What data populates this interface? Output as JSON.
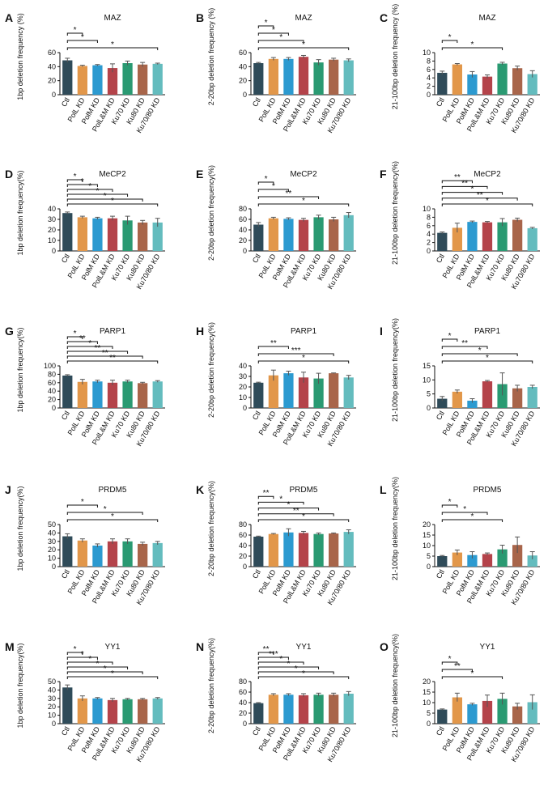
{
  "colors": {
    "Ctl": "#2f4b59",
    "PolL KD": "#e2974a",
    "PolM KD": "#2c9ad0",
    "PolL&M KD": "#b4434a",
    "Ku70 KD": "#2a9a72",
    "Ku80 KD": "#a8654a",
    "Ku70/80 KD": "#64bcbe",
    "error_bar": "#555555",
    "axis": "#111111"
  },
  "chart_data": [
    {
      "panel": "A",
      "type": "bar",
      "title": "MAZ",
      "ylabel": "1bp deletion frequency (%)",
      "categories": [
        "Ctl",
        "PolL KD",
        "PolM KD",
        "PolL&M KD",
        "Ku70 KD",
        "Ku80 KD",
        "Ku70/80 KD"
      ],
      "values": [
        49,
        41,
        42,
        38,
        45,
        43,
        44
      ],
      "errors": [
        3,
        1,
        1,
        6,
        3,
        3,
        1
      ],
      "ylim": [
        0,
        60
      ],
      "yticks": [
        "0",
        "20",
        "40",
        "60"
      ],
      "significance": [
        {
          "to": 1,
          "label": "*"
        },
        {
          "to": 2,
          "label": "*"
        },
        {
          "to": 6,
          "label": "*"
        }
      ]
    },
    {
      "panel": "B",
      "type": "bar",
      "title": "MAZ",
      "ylabel": "2-20bp deletion frequency (%)",
      "categories": [
        "Ctl",
        "PolL KD",
        "PolM KD",
        "PolL&M KD",
        "Ku70 KD",
        "Ku80 KD",
        "Ku70/80 KD"
      ],
      "values": [
        45,
        51,
        51,
        54,
        46,
        50,
        49
      ],
      "errors": [
        1,
        2,
        2,
        2,
        4,
        2,
        2
      ],
      "ylim": [
        0,
        60
      ],
      "yticks": [
        "0",
        "20",
        "40",
        "60"
      ],
      "significance": [
        {
          "to": 1,
          "label": "*"
        },
        {
          "to": 2,
          "label": "*"
        },
        {
          "to": 3,
          "label": "*"
        },
        {
          "to": 6,
          "label": "*"
        }
      ]
    },
    {
      "panel": "C",
      "type": "bar",
      "title": "MAZ",
      "ylabel": "21-100bp deletion frequency (%)",
      "categories": [
        "Ctl",
        "PolL KD",
        "PolM KD",
        "PolL&M KD",
        "Ku70 KD",
        "Ku80 KD",
        "Ku70/80 KD"
      ],
      "values": [
        5.2,
        7.2,
        4.8,
        4.3,
        7.4,
        6.3,
        4.9
      ],
      "errors": [
        0.4,
        0.2,
        0.7,
        0.4,
        0.3,
        0.5,
        0.8
      ],
      "ylim": [
        0,
        10
      ],
      "yticks": [
        "0",
        "2",
        "4",
        "6",
        "8",
        "10"
      ],
      "significance": [
        {
          "to": 1,
          "label": "*"
        },
        {
          "to": 4,
          "label": "*"
        }
      ]
    },
    {
      "panel": "D",
      "type": "bar",
      "title": "MeCP2",
      "ylabel": "1bp deletion frequency(%)",
      "categories": [
        "Ctl",
        "PolL KD",
        "PolM KD",
        "PolL&M KD",
        "Ku70 KD",
        "Ku80 KD",
        "Ku70/80 KD"
      ],
      "values": [
        36,
        32,
        31,
        31,
        29,
        27,
        27
      ],
      "errors": [
        1,
        1,
        1,
        2,
        4,
        2,
        4
      ],
      "ylim": [
        0,
        40
      ],
      "yticks": [
        "0",
        "10",
        "20",
        "30",
        "40"
      ],
      "significance": [
        {
          "to": 1,
          "label": "*"
        },
        {
          "to": 2,
          "label": "*"
        },
        {
          "to": 3,
          "label": "*"
        },
        {
          "to": 4,
          "label": "*"
        },
        {
          "to": 5,
          "label": "*"
        },
        {
          "to": 6,
          "label": "*"
        }
      ]
    },
    {
      "panel": "E",
      "type": "bar",
      "title": "MeCP2",
      "ylabel": "2-20bp deletion frequency(%)",
      "categories": [
        "Ctl",
        "PolL KD",
        "PolM KD",
        "PolL&M KD",
        "Ku70 KD",
        "Ku80 KD",
        "Ku70/80 KD"
      ],
      "values": [
        50,
        62,
        61,
        59,
        64,
        60,
        68
      ],
      "errors": [
        4,
        2,
        2,
        3,
        4,
        4,
        5
      ],
      "ylim": [
        0,
        80
      ],
      "yticks": [
        "0",
        "20",
        "40",
        "60",
        "80"
      ],
      "significance": [
        {
          "to": 1,
          "label": "*"
        },
        {
          "to": 2,
          "label": "*"
        },
        {
          "to": 4,
          "label": "**"
        },
        {
          "to": 6,
          "label": "*"
        }
      ]
    },
    {
      "panel": "F",
      "type": "bar",
      "title": "MeCP2",
      "ylabel": "21-100bp deletion frequency(%)",
      "categories": [
        "Ctl",
        "PolL KD",
        "PolM KD",
        "PolL&M KD",
        "Ku70 KD",
        "Ku80 KD",
        "Ku70/80 KD"
      ],
      "values": [
        4.3,
        5.5,
        6.9,
        6.8,
        6.8,
        7.4,
        5.4
      ],
      "errors": [
        0.2,
        1.1,
        0.2,
        0.2,
        0.9,
        0.4,
        0.2
      ],
      "ylim": [
        0,
        10
      ],
      "yticks": [
        "0",
        "2",
        "4",
        "6",
        "8",
        "10"
      ],
      "significance": [
        {
          "to": 2,
          "label": "**"
        },
        {
          "to": 3,
          "label": "**"
        },
        {
          "to": 4,
          "label": "*"
        },
        {
          "to": 5,
          "label": "**"
        },
        {
          "to": 6,
          "label": "*"
        }
      ]
    },
    {
      "panel": "G",
      "type": "bar",
      "title": "PARP1",
      "ylabel": "1bp deletion frequency(%)",
      "categories": [
        "Ctl",
        "PolL KD",
        "PolM KD",
        "PolL&M KD",
        "Ku70 KD",
        "Ku80 KD",
        "Ku70/80 KD"
      ],
      "values": [
        77,
        62,
        63,
        60,
        63,
        59,
        63
      ],
      "errors": [
        2,
        6,
        3,
        6,
        3,
        2,
        2
      ],
      "ylim": [
        0,
        100
      ],
      "yticks": [
        "0",
        "20",
        "40",
        "60",
        "80",
        "100"
      ],
      "significance": [
        {
          "to": 1,
          "label": "*"
        },
        {
          "to": 2,
          "label": "**"
        },
        {
          "to": 3,
          "label": "*"
        },
        {
          "to": 4,
          "label": "**"
        },
        {
          "to": 5,
          "label": "**"
        },
        {
          "to": 6,
          "label": "**"
        }
      ]
    },
    {
      "panel": "H",
      "type": "bar",
      "title": "PARP1",
      "ylabel": "2-20bp deletion frequency(%)",
      "categories": [
        "Ctl",
        "PolL KD",
        "PolM KD",
        "PolL&M KD",
        "Ku70 KD",
        "Ku80 KD",
        "Ku70/80 KD"
      ],
      "values": [
        24,
        31,
        33,
        29,
        28,
        33,
        29
      ],
      "errors": [
        0.5,
        5,
        2,
        5,
        5,
        0.3,
        2
      ],
      "ylim": [
        0,
        40
      ],
      "yticks": [
        "0",
        "10",
        "20",
        "30",
        "40"
      ],
      "significance": [
        {
          "to": 2,
          "label": "**"
        },
        {
          "to": 5,
          "label": "***"
        },
        {
          "to": 6,
          "label": "*"
        }
      ]
    },
    {
      "panel": "I",
      "type": "bar",
      "title": "PARP1",
      "ylabel": "21-100bp deletion frequency(%)",
      "categories": [
        "Ctl",
        "PolL KD",
        "PolM KD",
        "PolL&M KD",
        "Ku70 KD",
        "Ku80 KD",
        "Ku70/80 KD"
      ],
      "values": [
        3.3,
        5.8,
        2.6,
        9.5,
        8.5,
        7.0,
        7.5
      ],
      "errors": [
        0.8,
        0.6,
        0.7,
        0.3,
        4,
        1.1,
        0.6
      ],
      "ylim": [
        0,
        15
      ],
      "yticks": [
        "0",
        "5",
        "10",
        "15"
      ],
      "significance": [
        {
          "to": 1,
          "label": "*"
        },
        {
          "to": 3,
          "label": "**"
        },
        {
          "to": 5,
          "label": "*"
        },
        {
          "to": 6,
          "label": "*"
        }
      ]
    },
    {
      "panel": "J",
      "type": "bar",
      "title": "PRDM5",
      "ylabel": "1bp deletion frequency(%)",
      "categories": [
        "Ctl",
        "PolL KD",
        "PolM KD",
        "PolL&M KD",
        "Ku70 KD",
        "Ku80 KD",
        "Ku70/80 KD"
      ],
      "values": [
        36,
        31,
        25,
        30,
        30,
        27,
        28
      ],
      "errors": [
        3,
        2,
        2,
        3,
        3,
        2,
        2
      ],
      "ylim": [
        0,
        50
      ],
      "yticks": [
        "0",
        "10",
        "20",
        "30",
        "40",
        "50"
      ],
      "significance": [
        {
          "to": 2,
          "label": "*"
        },
        {
          "to": 5,
          "label": "*"
        },
        {
          "to": 6,
          "label": "*"
        }
      ]
    },
    {
      "panel": "K",
      "type": "bar",
      "title": "PRDM5",
      "ylabel": "2-20bp deletion frequency(%)",
      "categories": [
        "Ctl",
        "PolL KD",
        "PolM KD",
        "PolL&M KD",
        "Ku70 KD",
        "Ku80 KD",
        "Ku70/80 KD"
      ],
      "values": [
        57,
        62,
        65,
        64,
        62,
        63,
        66
      ],
      "errors": [
        1,
        1,
        7,
        3,
        2,
        1,
        4
      ],
      "ylim": [
        0,
        80
      ],
      "yticks": [
        "0",
        "20",
        "40",
        "60",
        "80"
      ],
      "significance": [
        {
          "to": 1,
          "label": "**"
        },
        {
          "to": 3,
          "label": "*"
        },
        {
          "to": 4,
          "label": "*"
        },
        {
          "to": 5,
          "label": "**"
        },
        {
          "to": 6,
          "label": "*"
        }
      ]
    },
    {
      "panel": "L",
      "type": "bar",
      "title": "PRDM5",
      "ylabel": "21-100bp deletion frequency(%)",
      "categories": [
        "Ctl",
        "PolL KD",
        "PolM KD",
        "PolL&M KD",
        "Ku70 KD",
        "Ku80 KD",
        "Ku70/80 KD"
      ],
      "values": [
        5.0,
        6.7,
        5.5,
        6.0,
        8.2,
        10.3,
        5.3
      ],
      "errors": [
        0.3,
        1.2,
        1.6,
        0.5,
        2.0,
        3.8,
        1.8
      ],
      "ylim": [
        0,
        20
      ],
      "yticks": [
        "0",
        "5",
        "10",
        "15",
        "20"
      ],
      "significance": [
        {
          "to": 1,
          "label": "*"
        },
        {
          "to": 3,
          "label": "*"
        },
        {
          "to": 4,
          "label": "*"
        }
      ]
    },
    {
      "panel": "M",
      "type": "bar",
      "title": "YY1",
      "ylabel": "1bp deletion frequency(%)",
      "categories": [
        "Ctl",
        "PolL KD",
        "PolM KD",
        "PolL&M KD",
        "Ku70 KD",
        "Ku80 KD",
        "Ku70/80 KD"
      ],
      "values": [
        43,
        30,
        30,
        28,
        29,
        29,
        30
      ],
      "errors": [
        3,
        3,
        1,
        2,
        1,
        1,
        1
      ],
      "ylim": [
        0,
        50
      ],
      "yticks": [
        "0",
        "10",
        "20",
        "30",
        "40",
        "50"
      ],
      "significance": [
        {
          "to": 1,
          "label": "*"
        },
        {
          "to": 2,
          "label": "*"
        },
        {
          "to": 3,
          "label": "*"
        },
        {
          "to": 4,
          "label": "*"
        },
        {
          "to": 5,
          "label": "*"
        },
        {
          "to": 6,
          "label": "*"
        }
      ]
    },
    {
      "panel": "N",
      "type": "bar",
      "title": "YY1",
      "ylabel": "2-20bp deletion frequency(%)",
      "categories": [
        "Ctl",
        "PolL KD",
        "PolM KD",
        "PolL&M KD",
        "Ku70 KD",
        "Ku80 KD",
        "Ku70/80 KD"
      ],
      "values": [
        39,
        55,
        55,
        54,
        55,
        55,
        57
      ],
      "errors": [
        1,
        2,
        2,
        3,
        3,
        3,
        4
      ],
      "ylim": [
        0,
        80
      ],
      "yticks": [
        "0",
        "20",
        "40",
        "60",
        "80"
      ],
      "significance": [
        {
          "to": 1,
          "label": "**"
        },
        {
          "to": 2,
          "label": "***"
        },
        {
          "to": 3,
          "label": "*"
        },
        {
          "to": 4,
          "label": "*"
        },
        {
          "to": 5,
          "label": "*"
        },
        {
          "to": 6,
          "label": "*"
        }
      ]
    },
    {
      "panel": "O",
      "type": "bar",
      "title": "YY1",
      "ylabel": "21-100bp deletion frequency(%)",
      "categories": [
        "Ctl",
        "PolL KD",
        "PolM KD",
        "PolL&M KD",
        "Ku70 KD",
        "Ku80 KD",
        "Ku70/80 KD"
      ],
      "values": [
        6.7,
        12.5,
        9.2,
        10.8,
        11.8,
        8.2,
        10.2
      ],
      "errors": [
        0.3,
        2.0,
        0.5,
        2.8,
        2.7,
        1.5,
        3.5
      ],
      "ylim": [
        0,
        20
      ],
      "yticks": [
        "0",
        "5",
        "10",
        "15",
        "20"
      ],
      "significance": [
        {
          "to": 1,
          "label": "*"
        },
        {
          "to": 2,
          "label": "**"
        },
        {
          "to": 4,
          "label": "*"
        }
      ]
    }
  ]
}
